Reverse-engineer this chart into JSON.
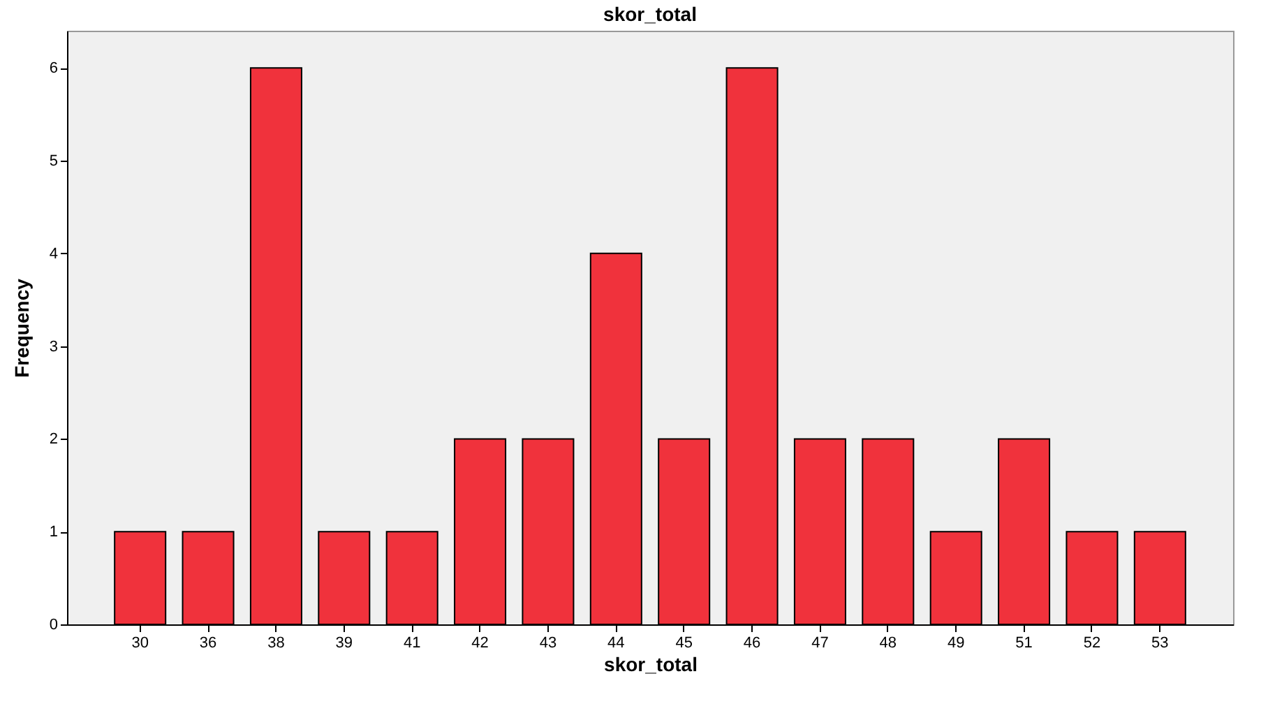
{
  "chart_data": {
    "type": "bar",
    "title": "skor_total",
    "xlabel": "skor_total",
    "ylabel": "Frequency",
    "categories": [
      "30",
      "36",
      "38",
      "39",
      "41",
      "42",
      "43",
      "44",
      "45",
      "46",
      "47",
      "48",
      "49",
      "51",
      "52",
      "53"
    ],
    "values": [
      1,
      1,
      6,
      1,
      1,
      2,
      2,
      4,
      2,
      6,
      2,
      2,
      1,
      2,
      1,
      1
    ],
    "color": "#f0323c",
    "ylim": [
      0,
      6.4
    ],
    "yticks": [
      0,
      1,
      2,
      3,
      4,
      5,
      6
    ],
    "grid": false,
    "legend": false
  }
}
